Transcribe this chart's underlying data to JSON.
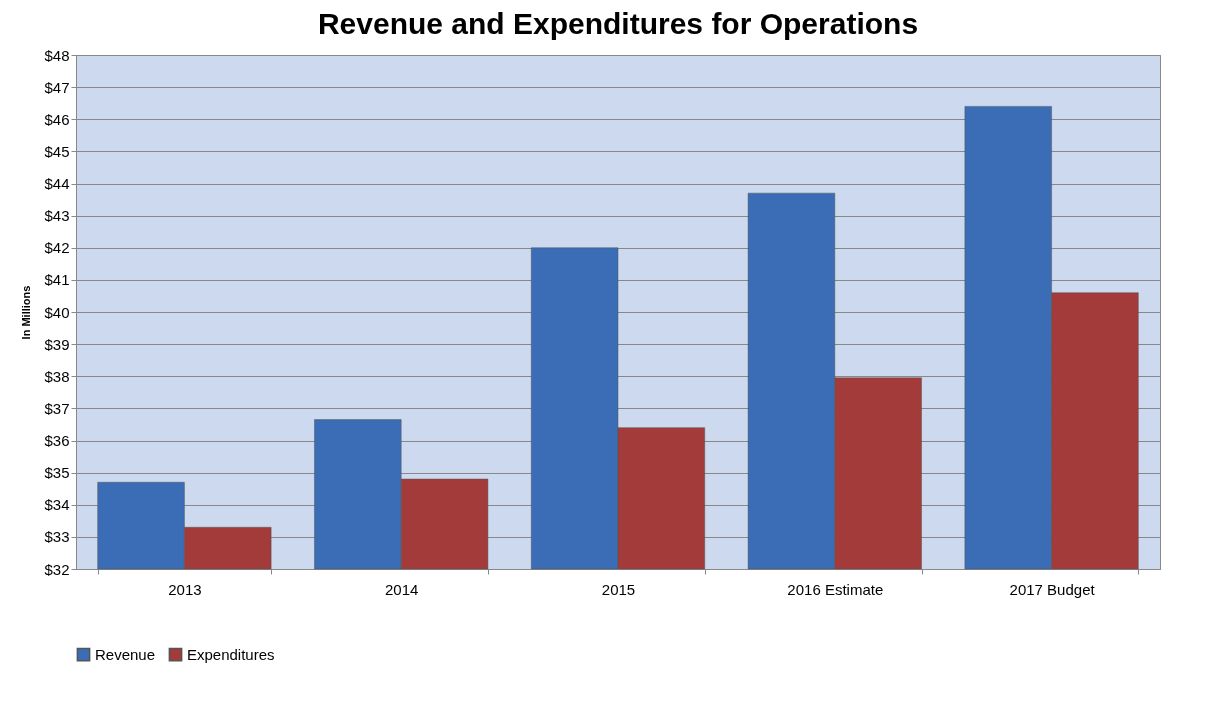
{
  "chart_data": {
    "type": "bar",
    "title": "Revenue and Expenditures for Operations",
    "ylabel": "In Millions",
    "categories": [
      "2013",
      "2014",
      "2015",
      "2016 Estimate",
      "2017 Budget"
    ],
    "series": [
      {
        "name": "Revenue",
        "color": "#3a6db5",
        "values": [
          34.7,
          36.65,
          42.0,
          43.7,
          46.4
        ]
      },
      {
        "name": "Expenditures",
        "color": "#a23b3a",
        "values": [
          33.3,
          34.8,
          36.4,
          37.95,
          40.6
        ]
      }
    ],
    "ylim": [
      32,
      48
    ],
    "yticks": [
      {
        "value": 32,
        "label": "$32"
      },
      {
        "value": 33,
        "label": "$33"
      },
      {
        "value": 34,
        "label": "$34"
      },
      {
        "value": 35,
        "label": "$35"
      },
      {
        "value": 36,
        "label": "$36"
      },
      {
        "value": 37,
        "label": "$37"
      },
      {
        "value": 38,
        "label": "$38"
      },
      {
        "value": 39,
        "label": "$39"
      },
      {
        "value": 40,
        "label": "$40"
      },
      {
        "value": 41,
        "label": "$41"
      },
      {
        "value": 42,
        "label": "$42"
      },
      {
        "value": 43,
        "label": "$43"
      },
      {
        "value": 44,
        "label": "$44"
      },
      {
        "value": 45,
        "label": "$45"
      },
      {
        "value": 46,
        "label": "$46"
      },
      {
        "value": 47,
        "label": "$47"
      },
      {
        "value": 48,
        "label": "$48"
      }
    ],
    "grid": "y",
    "legend": "bottom"
  }
}
